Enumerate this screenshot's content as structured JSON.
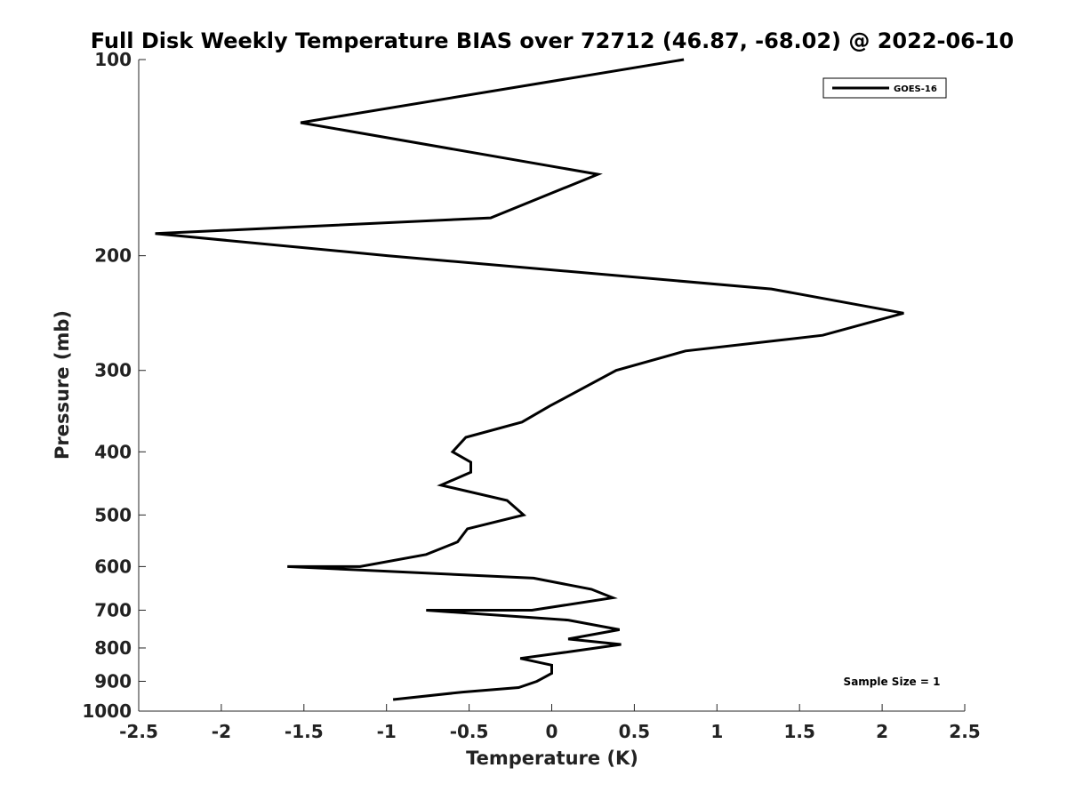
{
  "chart_data": {
    "type": "line",
    "title": "Full Disk Weekly Temperature BIAS over 72712 (46.87, -68.02) @ 2022-06-10",
    "xlabel": "Temperature (K)",
    "ylabel": "Pressure (mb)",
    "xlim": [
      -2.5,
      2.5
    ],
    "ylim": [
      1000,
      100
    ],
    "y_scale": "log",
    "y_reversed": true,
    "grid": false,
    "x_ticks": [
      -2.5,
      -2,
      -1.5,
      -1,
      -0.5,
      0,
      0.5,
      1,
      1.5,
      2,
      2.5
    ],
    "x_tick_labels": [
      "-2.5",
      "-2",
      "-1.5",
      "-1",
      "-0.5",
      "0",
      "0.5",
      "1",
      "1.5",
      "2",
      "2.5"
    ],
    "y_ticks": [
      100,
      200,
      300,
      400,
      500,
      600,
      700,
      800,
      900,
      1000
    ],
    "y_tick_labels": [
      "100",
      "200",
      "300",
      "400",
      "500",
      "600",
      "700",
      "800",
      "900",
      "1000"
    ],
    "legend": {
      "position": "top-right",
      "entries": [
        "GOES-16"
      ]
    },
    "annotation": "Sample Size = 1",
    "series": [
      {
        "name": "GOES-16",
        "color": "#000000",
        "x": [
          0.8,
          -1.52,
          0.28,
          -0.37,
          -2.4,
          -0.99,
          1.33,
          2.13,
          1.64,
          0.81,
          0.39,
          -0.01,
          -0.18,
          -0.52,
          -0.6,
          -0.49,
          -0.49,
          -0.67,
          -0.27,
          -0.17,
          -0.51,
          -0.57,
          -0.76,
          -1.16,
          -1.6,
          -0.11,
          0.24,
          0.37,
          -0.12,
          -0.76,
          0.1,
          0.41,
          0.1,
          0.42,
          0.12,
          -0.19,
          0.0,
          0.0,
          -0.09,
          -0.2,
          -0.54,
          -0.96
        ],
        "y": [
          100,
          125,
          150,
          175,
          185,
          200,
          225,
          245,
          265,
          280,
          300,
          340,
          360,
          380,
          400,
          415,
          430,
          450,
          475,
          500,
          525,
          550,
          575,
          600,
          600,
          625,
          650,
          670,
          700,
          700,
          725,
          750,
          775,
          790,
          810,
          830,
          850,
          875,
          900,
          920,
          935,
          960
        ]
      }
    ]
  }
}
